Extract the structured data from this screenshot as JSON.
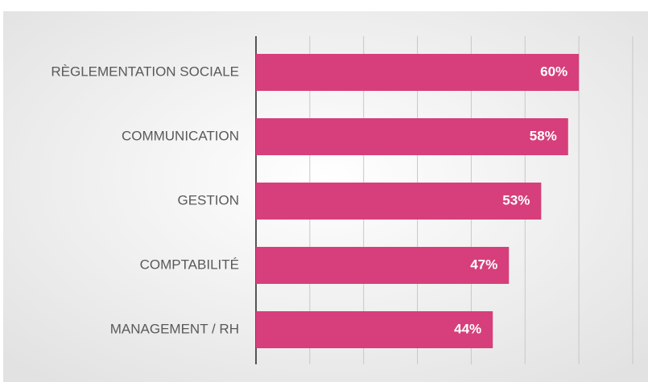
{
  "chart_data": {
    "type": "bar",
    "orientation": "horizontal",
    "categories": [
      "RÈGLEMENTATION SOCIALE",
      "COMMUNICATION",
      "GESTION",
      "COMPTABILITÉ",
      "MANAGEMENT / RH"
    ],
    "values": [
      60,
      58,
      53,
      47,
      44
    ],
    "value_labels": [
      "60%",
      "58%",
      "53%",
      "47%",
      "44%"
    ],
    "color": "#d63f7b",
    "xlim": [
      0,
      70
    ],
    "xticks": [
      0,
      10,
      20,
      30,
      40,
      50,
      60,
      70
    ],
    "grid": true
  }
}
